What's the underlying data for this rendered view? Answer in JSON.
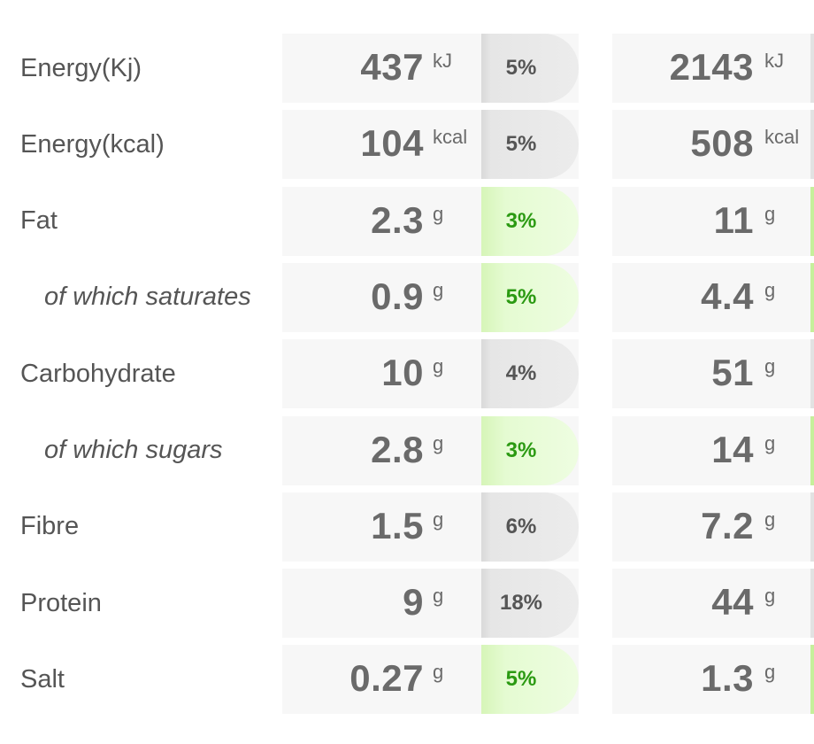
{
  "rows": [
    {
      "label": "Energy(Kj)",
      "sub": false,
      "v1": "437",
      "u1": "kJ",
      "pct": "5%",
      "green": false,
      "v2": "2143",
      "u2": "kJ"
    },
    {
      "label": "Energy(kcal)",
      "sub": false,
      "v1": "104",
      "u1": "kcal",
      "pct": "5%",
      "green": false,
      "v2": "508",
      "u2": "kcal"
    },
    {
      "label": "Fat",
      "sub": false,
      "v1": "2.3",
      "u1": "g",
      "pct": "3%",
      "green": true,
      "v2": "11",
      "u2": "g"
    },
    {
      "label": "of which saturates",
      "sub": true,
      "v1": "0.9",
      "u1": "g",
      "pct": "5%",
      "green": true,
      "v2": "4.4",
      "u2": "g"
    },
    {
      "label": "Carbohydrate",
      "sub": false,
      "v1": "10",
      "u1": "g",
      "pct": "4%",
      "green": false,
      "v2": "51",
      "u2": "g"
    },
    {
      "label": "of which sugars",
      "sub": true,
      "v1": "2.8",
      "u1": "g",
      "pct": "3%",
      "green": true,
      "v2": "14",
      "u2": "g"
    },
    {
      "label": "Fibre",
      "sub": false,
      "v1": "1.5",
      "u1": "g",
      "pct": "6%",
      "green": false,
      "v2": "7.2",
      "u2": "g"
    },
    {
      "label": "Protein",
      "sub": false,
      "v1": "9",
      "u1": "g",
      "pct": "18%",
      "green": false,
      "v2": "44",
      "u2": "g"
    },
    {
      "label": "Salt",
      "sub": false,
      "v1": "0.27",
      "u1": "g",
      "pct": "5%",
      "green": true,
      "v2": "1.3",
      "u2": "g"
    }
  ]
}
